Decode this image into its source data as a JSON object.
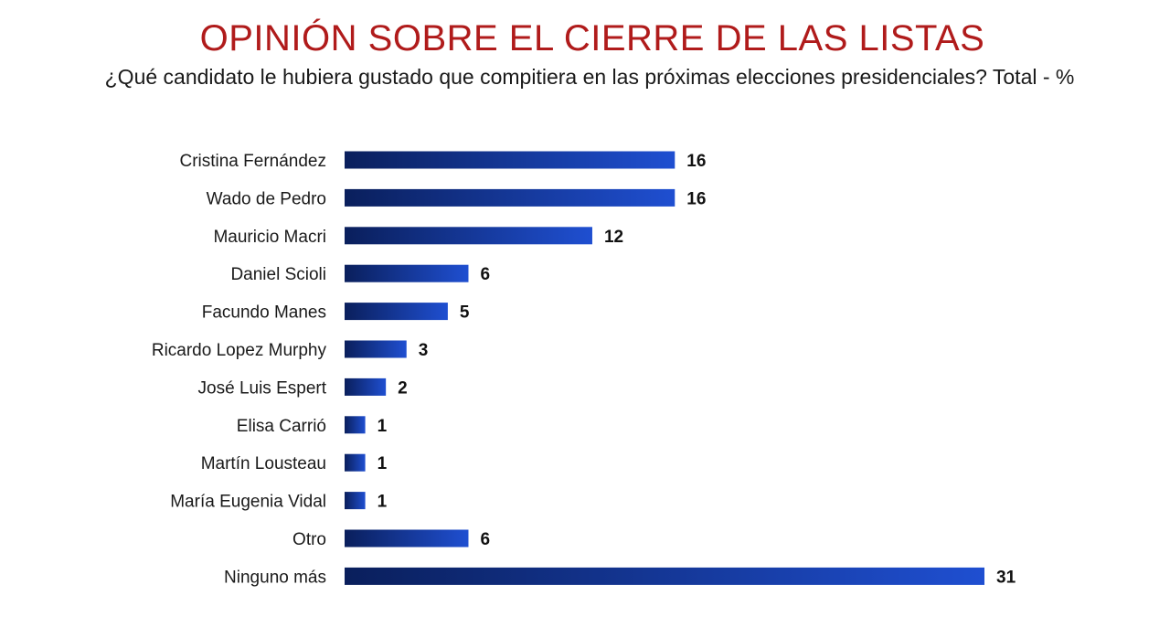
{
  "header": {
    "title": "OPINIÓN SOBRE EL CIERRE DE LAS LISTAS",
    "subtitle": "¿Qué candidato le hubiera gustado que compitiera en las próximas elecciones presidenciales? Total - %"
  },
  "colors": {
    "title": "#b01b1b",
    "bar_dark": "#0a1f5c",
    "bar_light": "#1f4fd1"
  },
  "chart_data": {
    "type": "bar",
    "orientation": "horizontal",
    "title": "OPINIÓN SOBRE EL CIERRE DE LAS LISTAS",
    "subtitle": "¿Qué candidato le hubiera gustado que compitiera en las próximas elecciones presidenciales? Total - %",
    "xlabel": "",
    "ylabel": "",
    "grid": false,
    "categories": [
      "Cristina Fernández",
      "Wado de Pedro",
      "Mauricio Macri",
      "Daniel Scioli",
      "Facundo Manes",
      "Ricardo Lopez Murphy",
      "José Luis Espert",
      "Elisa Carrió",
      "Martín Lousteau",
      "María Eugenia Vidal",
      "Otro",
      "Ninguno más"
    ],
    "values": [
      16,
      16,
      12,
      6,
      5,
      3,
      2,
      1,
      1,
      1,
      6,
      31
    ],
    "value_labels": [
      "16",
      "16",
      "12",
      "6",
      "5",
      "3",
      "2",
      "1",
      "1",
      "1",
      "6",
      "31"
    ],
    "xlim": [
      0,
      31
    ]
  }
}
